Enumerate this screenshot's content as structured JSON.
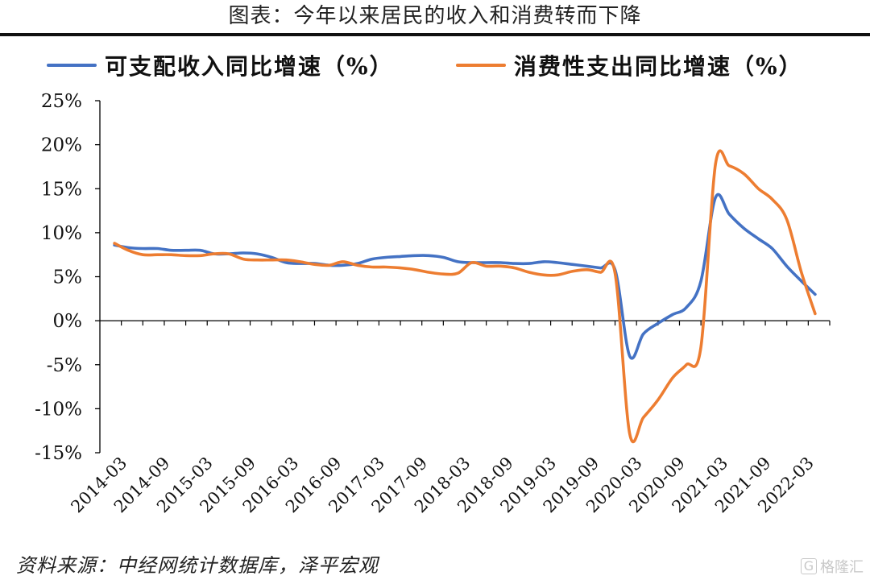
{
  "title": "图表：今年以来居民的收入和消费转而下降",
  "source": "资料来源：中经网统计数据库，泽平宏观",
  "watermark": "格隆汇",
  "colors": {
    "income": "#4472C4",
    "consumption": "#ED7D31",
    "axis": "#000000"
  },
  "chart_data": {
    "type": "line",
    "ylim": [
      -15,
      25
    ],
    "y_ticks": [
      "25%",
      "20%",
      "15%",
      "10%",
      "5%",
      "0%",
      "-5%",
      "-10%",
      "-15%"
    ],
    "y_tick_values": [
      25,
      20,
      15,
      10,
      5,
      0,
      -5,
      -10,
      -15
    ],
    "x_tick_labels": [
      "2014-03",
      "2014-09",
      "2015-03",
      "2015-09",
      "2016-03",
      "2016-09",
      "2017-03",
      "2017-09",
      "2018-03",
      "2018-09",
      "2019-03",
      "2019-09",
      "2020-03",
      "2020-09",
      "2021-03",
      "2021-09",
      "2022-03"
    ],
    "x_tick_years": [
      2014.25,
      2014.75,
      2015.25,
      2015.75,
      2016.25,
      2016.75,
      2017.25,
      2017.75,
      2018.25,
      2018.75,
      2019.25,
      2019.75,
      2020.25,
      2020.75,
      2021.25,
      2021.75,
      2022.25
    ],
    "series": [
      {
        "name": "可支配收入同比增速（%）",
        "color": "#4472C4",
        "points": [
          [
            2014.17,
            8.6
          ],
          [
            2014.33,
            8.3
          ],
          [
            2014.5,
            8.2
          ],
          [
            2014.67,
            8.2
          ],
          [
            2014.83,
            8.0
          ],
          [
            2015.0,
            8.0
          ],
          [
            2015.17,
            8.0
          ],
          [
            2015.33,
            7.6
          ],
          [
            2015.5,
            7.6
          ],
          [
            2015.67,
            7.7
          ],
          [
            2015.83,
            7.6
          ],
          [
            2016.0,
            7.2
          ],
          [
            2016.17,
            6.6
          ],
          [
            2016.33,
            6.5
          ],
          [
            2016.5,
            6.5
          ],
          [
            2016.67,
            6.3
          ],
          [
            2016.83,
            6.3
          ],
          [
            2017.0,
            6.5
          ],
          [
            2017.17,
            7.0
          ],
          [
            2017.33,
            7.2
          ],
          [
            2017.5,
            7.3
          ],
          [
            2017.67,
            7.4
          ],
          [
            2017.83,
            7.4
          ],
          [
            2018.0,
            7.2
          ],
          [
            2018.17,
            6.7
          ],
          [
            2018.33,
            6.6
          ],
          [
            2018.5,
            6.6
          ],
          [
            2018.67,
            6.6
          ],
          [
            2018.83,
            6.5
          ],
          [
            2019.0,
            6.5
          ],
          [
            2019.17,
            6.7
          ],
          [
            2019.33,
            6.6
          ],
          [
            2019.5,
            6.4
          ],
          [
            2019.67,
            6.2
          ],
          [
            2019.83,
            6.0
          ],
          [
            2020.0,
            5.8
          ],
          [
            2020.17,
            -4.0
          ],
          [
            2020.33,
            -1.5
          ],
          [
            2020.5,
            -0.3
          ],
          [
            2020.67,
            0.7
          ],
          [
            2020.83,
            1.5
          ],
          [
            2021.0,
            4.5
          ],
          [
            2021.17,
            14.0
          ],
          [
            2021.33,
            12.1
          ],
          [
            2021.5,
            10.5
          ],
          [
            2021.67,
            9.3
          ],
          [
            2021.83,
            8.2
          ],
          [
            2022.0,
            6.2
          ],
          [
            2022.17,
            4.5
          ],
          [
            2022.33,
            3.0
          ]
        ]
      },
      {
        "name": "消费性支出同比增速（%）",
        "color": "#ED7D31",
        "points": [
          [
            2014.17,
            8.8
          ],
          [
            2014.33,
            8.0
          ],
          [
            2014.5,
            7.5
          ],
          [
            2014.67,
            7.5
          ],
          [
            2014.83,
            7.5
          ],
          [
            2015.0,
            7.4
          ],
          [
            2015.17,
            7.4
          ],
          [
            2015.33,
            7.6
          ],
          [
            2015.5,
            7.6
          ],
          [
            2015.67,
            7.0
          ],
          [
            2015.83,
            6.9
          ],
          [
            2016.0,
            6.9
          ],
          [
            2016.17,
            6.9
          ],
          [
            2016.33,
            6.7
          ],
          [
            2016.5,
            6.4
          ],
          [
            2016.67,
            6.3
          ],
          [
            2016.83,
            6.7
          ],
          [
            2017.0,
            6.3
          ],
          [
            2017.17,
            6.1
          ],
          [
            2017.33,
            6.1
          ],
          [
            2017.5,
            6.0
          ],
          [
            2017.67,
            5.8
          ],
          [
            2017.83,
            5.5
          ],
          [
            2018.0,
            5.3
          ],
          [
            2018.17,
            5.4
          ],
          [
            2018.33,
            6.6
          ],
          [
            2018.5,
            6.2
          ],
          [
            2018.67,
            6.2
          ],
          [
            2018.83,
            6.0
          ],
          [
            2019.0,
            5.5
          ],
          [
            2019.17,
            5.2
          ],
          [
            2019.33,
            5.2
          ],
          [
            2019.5,
            5.6
          ],
          [
            2019.67,
            5.8
          ],
          [
            2019.83,
            5.5
          ],
          [
            2020.0,
            5.4
          ],
          [
            2020.17,
            -12.8
          ],
          [
            2020.33,
            -11.0
          ],
          [
            2020.5,
            -9.0
          ],
          [
            2020.67,
            -6.5
          ],
          [
            2020.83,
            -5.0
          ],
          [
            2021.0,
            -3.0
          ],
          [
            2021.17,
            17.8
          ],
          [
            2021.33,
            17.6
          ],
          [
            2021.5,
            16.7
          ],
          [
            2021.67,
            15.0
          ],
          [
            2021.83,
            13.8
          ],
          [
            2022.0,
            11.5
          ],
          [
            2022.17,
            5.5
          ],
          [
            2022.33,
            0.8
          ]
        ]
      }
    ]
  }
}
